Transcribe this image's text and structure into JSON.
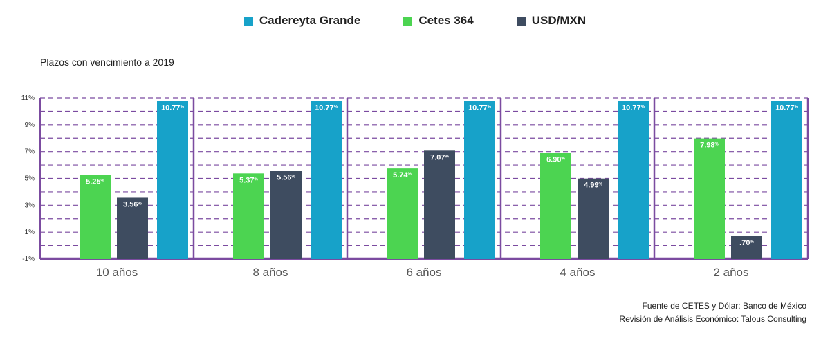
{
  "colors": {
    "cadereyta": "#17a2c9",
    "cetes": "#4cd451",
    "usd": "#3e4c60",
    "frame": "#7b4ba0",
    "grid": "#7b4ba0"
  },
  "legend": [
    {
      "label": "Cadereyta Grande",
      "color": "#17a2c9"
    },
    {
      "label": "Cetes 364",
      "color": "#4cd451"
    },
    {
      "label": "USD/MXN",
      "color": "#3e4c60"
    }
  ],
  "subtitle": "Plazos con vencimiento a 2019",
  "source": {
    "line1": "Fuente de CETES y Dólar: Banco de México",
    "line2": "Revisión de Análisis Económico: Talous Consulting"
  },
  "chart_data": {
    "type": "bar",
    "title": "",
    "xlabel": "",
    "ylabel": "",
    "categories": [
      "10 años",
      "8 años",
      "6 años",
      "4 años",
      "2 años"
    ],
    "ylim": [
      -1,
      11
    ],
    "y_ticks": [
      "11%",
      "9%",
      "7%",
      "5%",
      "3%",
      "1%",
      "-1%"
    ],
    "y_tick_values": [
      11,
      9,
      7,
      5,
      3,
      1,
      -1
    ],
    "grid": "horizontal dashed, every 1%",
    "legend_position": "top-center",
    "series": [
      {
        "name": "Cetes 364",
        "color": "#4cd451",
        "values": [
          5.25,
          5.37,
          5.74,
          6.9,
          7.98
        ],
        "labels": [
          "5.25%",
          "5.37%",
          "5.74%",
          "6.90%",
          "7.98%"
        ]
      },
      {
        "name": "USD/MXN",
        "color": "#3e4c60",
        "values": [
          3.56,
          5.56,
          7.07,
          4.99,
          0.7
        ],
        "labels": [
          "3.56%",
          "5.56%",
          "7.07%",
          "4.99%",
          ".70%"
        ]
      },
      {
        "name": "Cadereyta Grande",
        "color": "#17a2c9",
        "values": [
          10.77,
          10.77,
          10.77,
          10.77,
          10.77
        ],
        "labels": [
          "10.77%",
          "10.77%",
          "10.77%",
          "10.77%",
          "10.77%"
        ]
      }
    ]
  }
}
